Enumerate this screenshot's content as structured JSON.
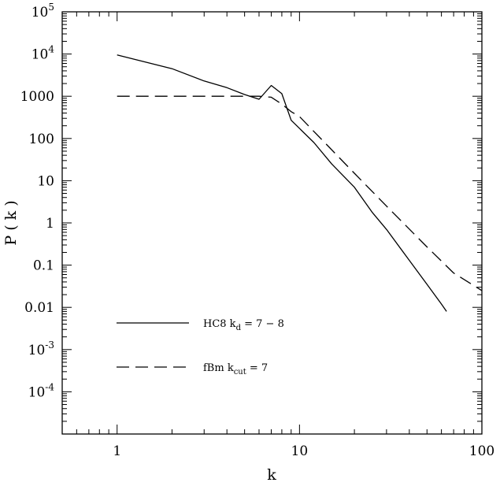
{
  "chart_data": {
    "type": "line",
    "xlabel": "k",
    "ylabel": "P ( k )",
    "xscale": "log",
    "yscale": "log",
    "xlim": [
      0.5,
      100
    ],
    "ylim": [
      1e-05,
      100000
    ],
    "grid": false,
    "legend_placement": "lower-left",
    "x_tick_labels": [
      {
        "value": 1,
        "label": "1"
      },
      {
        "value": 10,
        "label": "10"
      },
      {
        "value": 100,
        "label": "100"
      }
    ],
    "y_tick_labels": [
      {
        "value": 0.0001,
        "label": "10",
        "sup": "-4"
      },
      {
        "value": 0.001,
        "label": "10",
        "sup": "-3"
      },
      {
        "value": 0.01,
        "label": "0.01",
        "sup": ""
      },
      {
        "value": 0.1,
        "label": "0.1",
        "sup": ""
      },
      {
        "value": 1,
        "label": "1",
        "sup": ""
      },
      {
        "value": 10,
        "label": "10",
        "sup": ""
      },
      {
        "value": 100,
        "label": "100",
        "sup": ""
      },
      {
        "value": 1000,
        "label": "1000",
        "sup": ""
      },
      {
        "value": 10000,
        "label": "10",
        "sup": "4"
      },
      {
        "value": 100000,
        "label": "10",
        "sup": "5"
      }
    ],
    "series": [
      {
        "legend_main": "HC8  k",
        "legend_sub": "d",
        "legend_tail": " = 7 − 8",
        "style": "solid",
        "x": [
          1,
          2,
          3,
          4,
          5,
          6,
          7,
          8,
          9,
          12,
          15,
          20,
          25,
          30,
          40,
          50,
          60,
          64
        ],
        "y": [
          9500,
          4500,
          2300,
          1600,
          1100,
          850,
          1800,
          1150,
          270,
          80,
          25,
          7,
          1.8,
          0.7,
          0.13,
          0.035,
          0.012,
          0.008
        ]
      },
      {
        "legend_main": "fBm  k",
        "legend_sub": "cut",
        "legend_tail": " = 7",
        "style": "dashed",
        "x": [
          1,
          2,
          3,
          4,
          5,
          6,
          7,
          8,
          9,
          10,
          20,
          30,
          50,
          70,
          100
        ],
        "y": [
          1000,
          1000,
          1000,
          1000,
          1000,
          1000,
          950,
          650,
          430,
          330,
          15,
          2.5,
          0.27,
          0.065,
          0.025
        ]
      }
    ]
  }
}
